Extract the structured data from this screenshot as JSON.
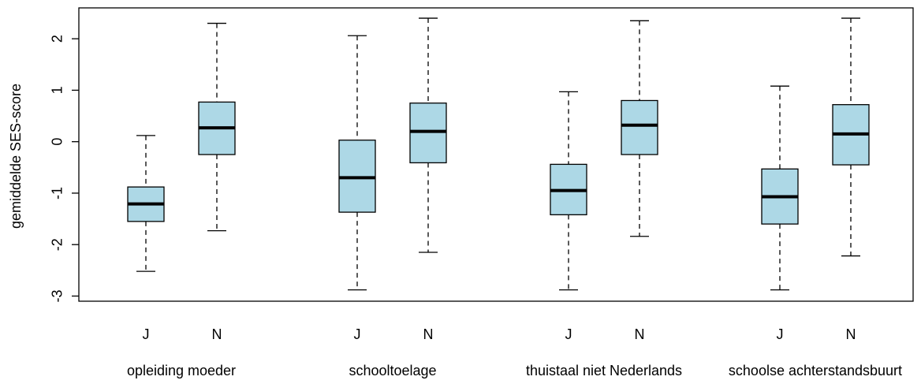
{
  "chart_data": {
    "type": "boxplot",
    "ylabel": "gemiddelde SES-score",
    "xlabel": "",
    "ylim": [
      -3.1,
      2.6
    ],
    "yticks": [
      -3,
      -2,
      -1,
      0,
      1,
      2
    ],
    "ytick_labels": [
      "-3",
      "-2",
      "-1",
      "0",
      "1",
      "2"
    ],
    "box_color": "#ADD8E6",
    "groups": [
      {
        "label": "opleiding moeder",
        "boxes": [
          {
            "category": "J",
            "min": -2.52,
            "q1": -1.55,
            "median": -1.21,
            "q3": -0.88,
            "max": 0.12
          },
          {
            "category": "N",
            "min": -1.73,
            "q1": -0.25,
            "median": 0.27,
            "q3": 0.77,
            "max": 2.3
          }
        ]
      },
      {
        "label": "schooltoelage",
        "boxes": [
          {
            "category": "J",
            "min": -2.88,
            "q1": -1.37,
            "median": -0.7,
            "q3": 0.03,
            "max": 2.06
          },
          {
            "category": "N",
            "min": -2.15,
            "q1": -0.41,
            "median": 0.2,
            "q3": 0.75,
            "max": 2.4
          }
        ]
      },
      {
        "label": "thuistaal niet Nederlands",
        "boxes": [
          {
            "category": "J",
            "min": -2.88,
            "q1": -1.42,
            "median": -0.95,
            "q3": -0.44,
            "max": 0.97
          },
          {
            "category": "N",
            "min": -1.84,
            "q1": -0.25,
            "median": 0.32,
            "q3": 0.8,
            "max": 2.35
          }
        ]
      },
      {
        "label": "schoolse achterstandsbuurt",
        "boxes": [
          {
            "category": "J",
            "min": -2.88,
            "q1": -1.6,
            "median": -1.07,
            "q3": -0.53,
            "max": 1.08
          },
          {
            "category": "N",
            "min": -2.22,
            "q1": -0.45,
            "median": 0.15,
            "q3": 0.72,
            "max": 2.4
          }
        ]
      }
    ]
  }
}
